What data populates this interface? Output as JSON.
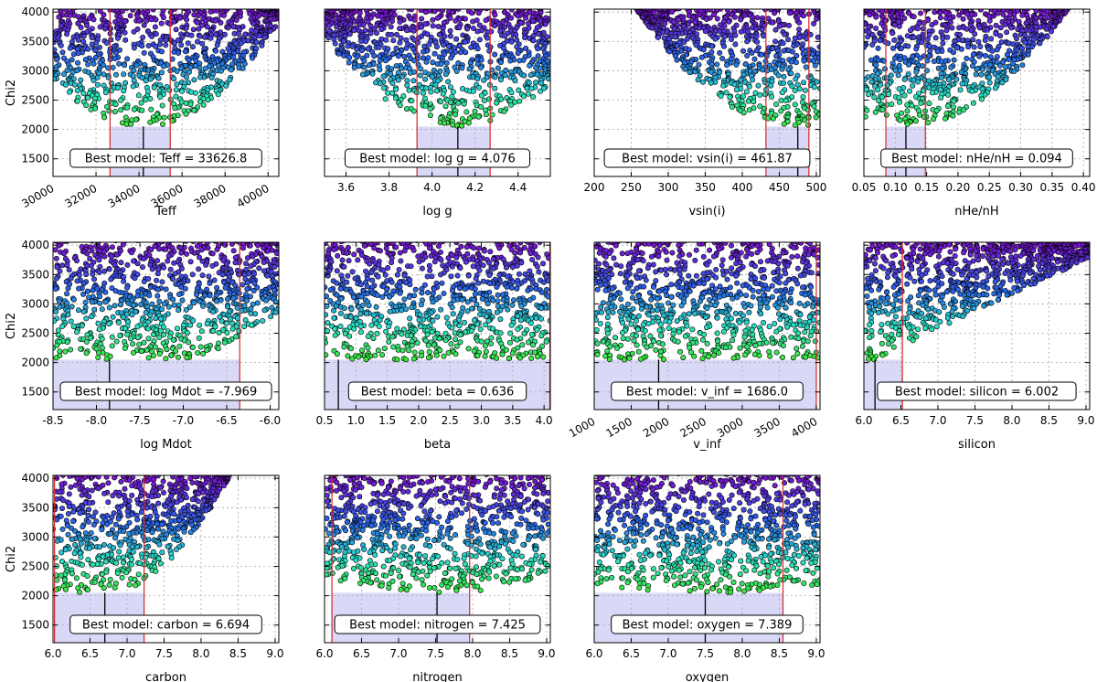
{
  "chart_data": [
    {
      "type": "scatter",
      "param": "Teff",
      "xlabel": "Teff",
      "ylabel": "Chi2",
      "xlim": [
        30000,
        40500
      ],
      "ylim": [
        1200,
        4050
      ],
      "xticks": [
        30000,
        32000,
        34000,
        36000,
        38000,
        40000
      ],
      "yticks": [
        1500,
        2000,
        2500,
        3000,
        3500,
        4000
      ],
      "tick_rotation": 30,
      "best_value": 34200,
      "ci": [
        32650,
        35450
      ],
      "min_chi2": 2050,
      "floor": {
        "type": "parabola",
        "a": 4.5e-05
      },
      "annotation": "Best model: Teff = 33626.8"
    },
    {
      "type": "scatter",
      "param": "log g",
      "xlabel": "log g",
      "ylabel": "",
      "xlim": [
        3.5,
        4.55
      ],
      "ylim": [
        1200,
        4050
      ],
      "xticks": [
        3.6,
        3.8,
        4.0,
        4.2,
        4.4
      ],
      "yticks": [
        1500,
        2000,
        2500,
        3000,
        3500,
        4000
      ],
      "tick_rotation": 0,
      "best_value": 4.12,
      "ci": [
        3.93,
        4.27
      ],
      "min_chi2": 2050,
      "floor": {
        "type": "parabola",
        "a": 4000
      },
      "annotation": "Best model: log g = 4.076"
    },
    {
      "type": "scatter",
      "param": "vsin(i)",
      "xlabel": "vsin(i)",
      "ylabel": "",
      "xlim": [
        200,
        505
      ],
      "ylim": [
        1200,
        4050
      ],
      "xticks": [
        200,
        250,
        300,
        350,
        400,
        450,
        500
      ],
      "yticks": [
        1500,
        2000,
        2500,
        3000,
        3500,
        4000
      ],
      "tick_rotation": 0,
      "best_value": 475,
      "ci": [
        432,
        490
      ],
      "min_chi2": 2050,
      "floor": {
        "type": "parabola",
        "a": 0.042
      },
      "annotation": "Best model: vsin(i) = 461.87"
    },
    {
      "type": "scatter",
      "param": "nHe/nH",
      "xlabel": "nHe/nH",
      "ylabel": "",
      "xlim": [
        0.05,
        0.41
      ],
      "ylim": [
        1200,
        4050
      ],
      "xticks": [
        0.05,
        0.1,
        0.15,
        0.2,
        0.25,
        0.3,
        0.35,
        0.4
      ],
      "yticks": [
        1500,
        2000,
        2500,
        3000,
        3500,
        4000
      ],
      "tick_rotation": 0,
      "best_value": 0.117,
      "ci": [
        0.085,
        0.148
      ],
      "min_chi2": 2050,
      "floor": {
        "type": "parabola",
        "a": 30000
      },
      "annotation": "Best model: nHe/nH = 0.094"
    },
    {
      "type": "scatter",
      "param": "log Mdot",
      "xlabel": "log Mdot",
      "ylabel": "Chi2",
      "xlim": [
        -8.5,
        -5.9
      ],
      "ylim": [
        1200,
        4050
      ],
      "xticks": [
        -8.5,
        -8.0,
        -7.5,
        -7.0,
        -6.5,
        -6.0
      ],
      "yticks": [
        1500,
        2000,
        2500,
        3000,
        3500,
        4000
      ],
      "tick_rotation": 0,
      "best_value": -7.85,
      "ci": [
        -8.5,
        -6.35
      ],
      "min_chi2": 2050,
      "floor": {
        "type": "flat-rise",
        "start": -7.2,
        "a": 500
      },
      "annotation": "Best model: log Mdot = -7.969"
    },
    {
      "type": "scatter",
      "param": "beta",
      "xlabel": "beta",
      "ylabel": "",
      "xlim": [
        0.5,
        4.1
      ],
      "ylim": [
        1200,
        4050
      ],
      "xticks": [
        0.5,
        1.0,
        1.5,
        2.0,
        2.5,
        3.0,
        3.5,
        4.0
      ],
      "yticks": [
        1500,
        2000,
        2500,
        3000,
        3500,
        4000
      ],
      "tick_rotation": 0,
      "best_value": 0.72,
      "ci": [
        0.5,
        4.1
      ],
      "min_chi2": 2050,
      "floor": {
        "type": "flat"
      },
      "annotation": "Best model: beta = 0.636"
    },
    {
      "type": "scatter",
      "param": "v_inf",
      "xlabel": "v_inf",
      "ylabel": "",
      "xlim": [
        1000,
        4050
      ],
      "ylim": [
        1200,
        4050
      ],
      "xticks": [
        1000,
        1500,
        2000,
        2500,
        3000,
        3500,
        4000
      ],
      "yticks": [
        1500,
        2000,
        2500,
        3000,
        3500,
        4000
      ],
      "tick_rotation": 30,
      "best_value": 1870,
      "ci": [
        1000,
        4000
      ],
      "min_chi2": 2050,
      "floor": {
        "type": "flat"
      },
      "annotation": "Best model: v_inf = 1686.0"
    },
    {
      "type": "scatter",
      "param": "silicon",
      "xlabel": "silicon",
      "ylabel": "",
      "xlim": [
        6.0,
        9.05
      ],
      "ylim": [
        1200,
        4050
      ],
      "xticks": [
        6.0,
        6.5,
        7.0,
        7.5,
        8.0,
        8.5,
        9.0
      ],
      "yticks": [
        1500,
        2000,
        2500,
        3000,
        3500,
        4000
      ],
      "tick_rotation": 0,
      "best_value": 6.15,
      "ci": [
        6.0,
        6.52
      ],
      "min_chi2": 2050,
      "floor": {
        "type": "linear-right",
        "start": 6.15,
        "slope": 600
      },
      "annotation": "Best model: silicon = 6.002"
    },
    {
      "type": "scatter",
      "param": "carbon",
      "xlabel": "carbon",
      "ylabel": "Chi2",
      "xlim": [
        6.0,
        9.05
      ],
      "ylim": [
        1200,
        4050
      ],
      "xticks": [
        6.0,
        6.5,
        7.0,
        7.5,
        8.0,
        8.5,
        9.0
      ],
      "yticks": [
        1500,
        2000,
        2500,
        3000,
        3500,
        4000
      ],
      "tick_rotation": 0,
      "best_value": 6.7,
      "ci": [
        6.02,
        7.23
      ],
      "min_chi2": 2050,
      "floor": {
        "type": "parabola-right",
        "start": 6.7,
        "a": 700
      },
      "annotation": "Best model: carbon = 6.694"
    },
    {
      "type": "scatter",
      "param": "nitrogen",
      "xlabel": "nitrogen",
      "ylabel": "",
      "xlim": [
        6.0,
        9.05
      ],
      "ylim": [
        1200,
        4050
      ],
      "xticks": [
        6.0,
        6.5,
        7.0,
        7.5,
        8.0,
        8.5,
        9.0
      ],
      "yticks": [
        1500,
        2000,
        2500,
        3000,
        3500,
        4000
      ],
      "tick_rotation": 0,
      "best_value": 7.52,
      "ci": [
        6.1,
        7.96
      ],
      "min_chi2": 2050,
      "floor": {
        "type": "parabola",
        "a": 120
      },
      "annotation": "Best model: nitrogen = 7.425"
    },
    {
      "type": "scatter",
      "param": "oxygen",
      "xlabel": "oxygen",
      "ylabel": "",
      "xlim": [
        6.0,
        9.05
      ],
      "ylim": [
        1200,
        4050
      ],
      "xticks": [
        6.0,
        6.5,
        7.0,
        7.5,
        8.0,
        8.5,
        9.0
      ],
      "yticks": [
        1500,
        2000,
        2500,
        3000,
        3500,
        4000
      ],
      "tick_rotation": 0,
      "best_value": 7.5,
      "ci": [
        6.0,
        8.55
      ],
      "min_chi2": 2050,
      "floor": {
        "type": "parabola",
        "a": 60
      },
      "annotation": "Best model: oxygen = 7.389"
    }
  ],
  "colors": {
    "ci_line": "#d62728",
    "ci_fill": "#d9d9f7",
    "best_line": "#000000",
    "point_edge": "#000000",
    "grid": "#a8a8a8"
  },
  "colormap": "rainbow"
}
